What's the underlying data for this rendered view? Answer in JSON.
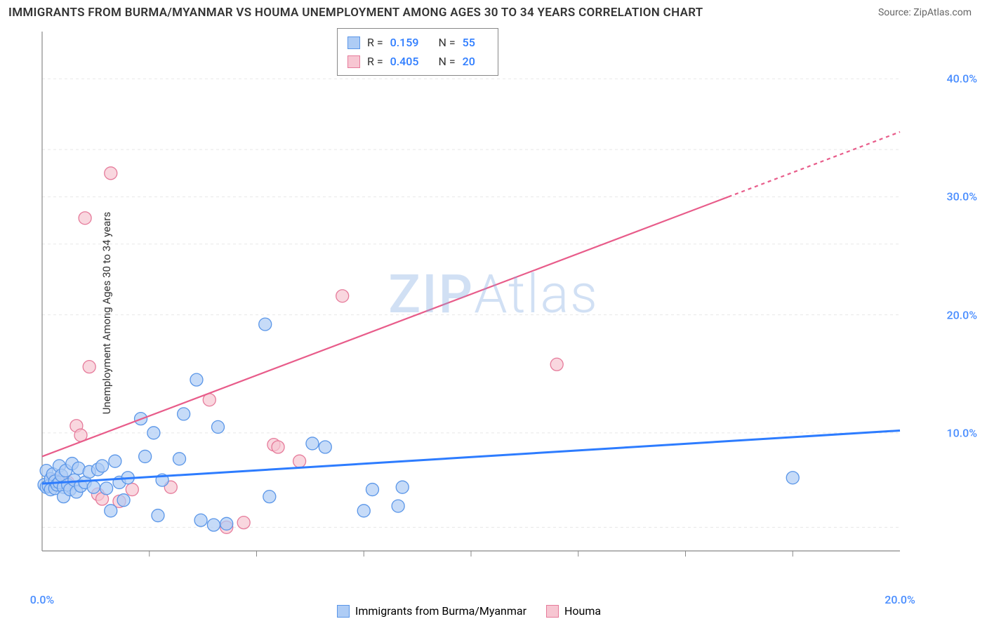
{
  "title": "IMMIGRANTS FROM BURMA/MYANMAR VS HOUMA UNEMPLOYMENT AMONG AGES 30 TO 34 YEARS CORRELATION CHART",
  "source": "Source: ZipAtlas.com",
  "ylabel": "Unemployment Among Ages 30 to 34 years",
  "watermark_a": "ZIP",
  "watermark_b": "Atlas",
  "chart": {
    "type": "scatter-with-trend",
    "background_color": "#ffffff",
    "grid_color": "#e8e8e8",
    "grid_dash": "4,4",
    "axis_color": "#888888",
    "xlim": [
      0,
      20
    ],
    "ylim": [
      0,
      44
    ],
    "ytick_labels": [
      "10.0%",
      "20.0%",
      "30.0%",
      "40.0%"
    ],
    "ytick_values": [
      10,
      20,
      30,
      40
    ],
    "xtick_labels": [
      "0.0%",
      "20.0%"
    ],
    "xtick_values": [
      0,
      20
    ],
    "xtick_minor": [
      2.5,
      5,
      7.5,
      10,
      12.5,
      15,
      17.5
    ],
    "tick_color": "#4a8eff",
    "tick_fontsize": 16
  },
  "series": {
    "blue": {
      "label": "Immigrants from Burma/Myanmar",
      "fill": "#aeccf5",
      "stroke": "#5a96e8",
      "opacity": 0.7,
      "marker_r": 9,
      "points": [
        [
          0.05,
          5.6
        ],
        [
          0.1,
          5.4
        ],
        [
          0.1,
          6.8
        ],
        [
          0.15,
          5.5
        ],
        [
          0.2,
          6.1
        ],
        [
          0.2,
          5.2
        ],
        [
          0.25,
          6.5
        ],
        [
          0.3,
          5.3
        ],
        [
          0.3,
          5.9
        ],
        [
          0.35,
          5.6
        ],
        [
          0.4,
          7.2
        ],
        [
          0.4,
          5.8
        ],
        [
          0.45,
          6.4
        ],
        [
          0.5,
          5.4
        ],
        [
          0.5,
          4.6
        ],
        [
          0.55,
          6.8
        ],
        [
          0.6,
          5.6
        ],
        [
          0.65,
          5.2
        ],
        [
          0.7,
          7.4
        ],
        [
          0.75,
          6.0
        ],
        [
          0.8,
          5.0
        ],
        [
          0.85,
          7.0
        ],
        [
          0.9,
          5.5
        ],
        [
          1.0,
          5.8
        ],
        [
          1.1,
          6.7
        ],
        [
          1.2,
          5.4
        ],
        [
          1.3,
          6.9
        ],
        [
          1.4,
          7.2
        ],
        [
          1.5,
          5.3
        ],
        [
          1.6,
          3.4
        ],
        [
          1.7,
          7.6
        ],
        [
          1.8,
          5.8
        ],
        [
          1.9,
          4.3
        ],
        [
          2.0,
          6.2
        ],
        [
          2.3,
          11.2
        ],
        [
          2.4,
          8.0
        ],
        [
          2.6,
          10.0
        ],
        [
          2.7,
          3.0
        ],
        [
          2.8,
          6.0
        ],
        [
          3.2,
          7.8
        ],
        [
          3.3,
          11.6
        ],
        [
          3.6,
          14.5
        ],
        [
          3.7,
          2.6
        ],
        [
          4.0,
          2.2
        ],
        [
          4.1,
          10.5
        ],
        [
          4.3,
          2.3
        ],
        [
          5.2,
          19.2
        ],
        [
          5.3,
          4.6
        ],
        [
          6.3,
          9.1
        ],
        [
          6.6,
          8.8
        ],
        [
          7.5,
          3.4
        ],
        [
          7.7,
          5.2
        ],
        [
          8.3,
          3.8
        ],
        [
          8.4,
          5.4
        ],
        [
          17.5,
          6.2
        ]
      ],
      "trend": {
        "x1": 0,
        "y1": 5.7,
        "x2": 20,
        "y2": 10.2,
        "color": "#2d7cff",
        "width": 3
      }
    },
    "pink": {
      "label": "Houma",
      "fill": "#f7c6d2",
      "stroke": "#e67b9b",
      "opacity": 0.7,
      "marker_r": 9,
      "points": [
        [
          0.3,
          6.0
        ],
        [
          0.6,
          5.8
        ],
        [
          0.8,
          10.6
        ],
        [
          0.9,
          9.8
        ],
        [
          1.0,
          28.2
        ],
        [
          1.1,
          15.6
        ],
        [
          1.3,
          4.8
        ],
        [
          1.4,
          4.4
        ],
        [
          1.6,
          32.0
        ],
        [
          1.8,
          4.2
        ],
        [
          2.1,
          5.2
        ],
        [
          3.0,
          5.4
        ],
        [
          3.9,
          12.8
        ],
        [
          4.3,
          2.0
        ],
        [
          4.7,
          2.4
        ],
        [
          5.4,
          9.0
        ],
        [
          5.5,
          8.8
        ],
        [
          6.0,
          7.6
        ],
        [
          7.0,
          21.6
        ],
        [
          12.0,
          15.8
        ]
      ],
      "trend_solid": {
        "x1": 0,
        "y1": 8.0,
        "x2": 16,
        "y2": 30.0,
        "color": "#e85c8a",
        "width": 2.2
      },
      "trend_dashed": {
        "x1": 16,
        "y1": 30.0,
        "x2": 20,
        "y2": 35.5,
        "color": "#e85c8a",
        "width": 2.2,
        "dash": "5,5"
      }
    }
  },
  "stats": {
    "blue": {
      "R": "0.159",
      "N": "55"
    },
    "pink": {
      "R": "0.405",
      "N": "20"
    }
  }
}
